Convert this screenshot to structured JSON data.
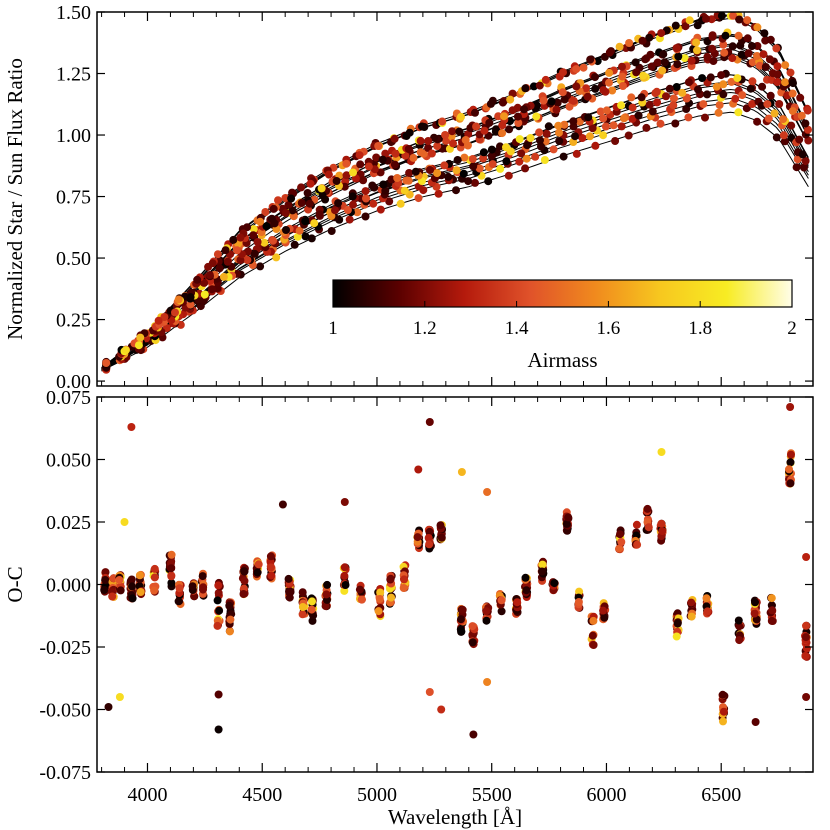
{
  "chart_data": {
    "type": "scatter",
    "colormap": {
      "name": "hot-like",
      "label": "Airmass",
      "range": [
        1,
        2
      ],
      "ticks": [
        "1",
        "1.2",
        "1.4",
        "1.6",
        "1.8",
        "2"
      ],
      "stops": [
        "#000000",
        "#5a0000",
        "#b41a0c",
        "#e0522a",
        "#f08a1e",
        "#f7c81f",
        "#f7ec23",
        "#fffde8"
      ]
    },
    "x_axis": {
      "label": "Wavelength [Å]",
      "range": [
        3780,
        6900
      ],
      "tick_values": [
        4000,
        4500,
        5000,
        5500,
        6000,
        6500
      ],
      "tick_labels": [
        "4000",
        "4500",
        "5000",
        "5500",
        "6000",
        "6500"
      ]
    },
    "top_panel": {
      "ylabel": "Normalized Star / Sun Flux Ratio",
      "ylim": [
        -0.02,
        1.5
      ],
      "tick_values": [
        0.0,
        0.25,
        0.5,
        0.75,
        1.0,
        1.25,
        1.5
      ],
      "tick_labels": [
        "0.00",
        "0.25",
        "0.50",
        "0.75",
        "1.00",
        "1.25",
        "1.50"
      ],
      "model_curve": {
        "wavelength": [
          3800,
          4000,
          4200,
          4400,
          4600,
          4800,
          5000,
          5200,
          5400,
          5600,
          5800,
          6000,
          6200,
          6400,
          6550,
          6650,
          6750,
          6880
        ],
        "ratio": [
          0.05,
          0.18,
          0.36,
          0.55,
          0.68,
          0.79,
          0.88,
          0.95,
          1.0,
          1.07,
          1.15,
          1.22,
          1.29,
          1.35,
          1.37,
          1.33,
          1.24,
          1.0
        ]
      },
      "scale_range": [
        0.82,
        1.1
      ],
      "bias_range": [
        -0.03,
        0.03
      ],
      "note": "Many fitted curves (one per star/airmass) with colored observations; curves share the model shape scaled per star"
    },
    "bottom_panel": {
      "ylabel": "O-C",
      "ylim": [
        -0.075,
        0.075
      ],
      "tick_values": [
        -0.075,
        -0.05,
        -0.025,
        0.0,
        0.025,
        0.05,
        0.075
      ],
      "tick_labels": [
        "-0.075",
        "-0.050",
        "-0.025",
        "0.000",
        "0.025",
        "0.050",
        "0.075"
      ],
      "residual_clusters": [
        {
          "wavelength": 3815,
          "center": 0.001,
          "spread": 0.004
        },
        {
          "wavelength": 3850,
          "center": -0.001,
          "spread": 0.004
        },
        {
          "wavelength": 3880,
          "center": 0.0,
          "spread": 0.004
        },
        {
          "wavelength": 3930,
          "center": -0.002,
          "spread": 0.004
        },
        {
          "wavelength": 3970,
          "center": 0.0,
          "spread": 0.004
        },
        {
          "wavelength": 4030,
          "center": 0.002,
          "spread": 0.005
        },
        {
          "wavelength": 4100,
          "center": 0.005,
          "spread": 0.007
        },
        {
          "wavelength": 4140,
          "center": -0.004,
          "spread": 0.004
        },
        {
          "wavelength": 4200,
          "center": -0.002,
          "spread": 0.003
        },
        {
          "wavelength": 4240,
          "center": 0.0,
          "spread": 0.005
        },
        {
          "wavelength": 4310,
          "center": -0.008,
          "spread": 0.009
        },
        {
          "wavelength": 4360,
          "center": -0.013,
          "spread": 0.006
        },
        {
          "wavelength": 4420,
          "center": 0.002,
          "spread": 0.006
        },
        {
          "wavelength": 4480,
          "center": 0.008,
          "spread": 0.005
        },
        {
          "wavelength": 4540,
          "center": 0.007,
          "spread": 0.005
        },
        {
          "wavelength": 4620,
          "center": -0.001,
          "spread": 0.005
        },
        {
          "wavelength": 4680,
          "center": -0.008,
          "spread": 0.005
        },
        {
          "wavelength": 4720,
          "center": -0.01,
          "spread": 0.005
        },
        {
          "wavelength": 4780,
          "center": -0.005,
          "spread": 0.005
        },
        {
          "wavelength": 4860,
          "center": 0.002,
          "spread": 0.005
        },
        {
          "wavelength": 4930,
          "center": -0.003,
          "spread": 0.004
        },
        {
          "wavelength": 5010,
          "center": -0.007,
          "spread": 0.006
        },
        {
          "wavelength": 5060,
          "center": -0.002,
          "spread": 0.006
        },
        {
          "wavelength": 5120,
          "center": 0.003,
          "spread": 0.006
        },
        {
          "wavelength": 5180,
          "center": 0.018,
          "spread": 0.004
        },
        {
          "wavelength": 5230,
          "center": 0.018,
          "spread": 0.004
        },
        {
          "wavelength": 5280,
          "center": 0.021,
          "spread": 0.003
        },
        {
          "wavelength": 5370,
          "center": -0.014,
          "spread": 0.005
        },
        {
          "wavelength": 5420,
          "center": -0.02,
          "spread": 0.004
        },
        {
          "wavelength": 5480,
          "center": -0.011,
          "spread": 0.004
        },
        {
          "wavelength": 5540,
          "center": -0.007,
          "spread": 0.004
        },
        {
          "wavelength": 5610,
          "center": -0.008,
          "spread": 0.004
        },
        {
          "wavelength": 5650,
          "center": -0.001,
          "spread": 0.004
        },
        {
          "wavelength": 5720,
          "center": 0.005,
          "spread": 0.005
        },
        {
          "wavelength": 5770,
          "center": -0.001,
          "spread": 0.004
        },
        {
          "wavelength": 5830,
          "center": 0.025,
          "spread": 0.004
        },
        {
          "wavelength": 5880,
          "center": -0.007,
          "spread": 0.005
        },
        {
          "wavelength": 5940,
          "center": -0.018,
          "spread": 0.007
        },
        {
          "wavelength": 5990,
          "center": -0.01,
          "spread": 0.004
        },
        {
          "wavelength": 6060,
          "center": 0.018,
          "spread": 0.004
        },
        {
          "wavelength": 6130,
          "center": 0.019,
          "spread": 0.005
        },
        {
          "wavelength": 6180,
          "center": 0.026,
          "spread": 0.005
        },
        {
          "wavelength": 6240,
          "center": 0.021,
          "spread": 0.004
        },
        {
          "wavelength": 6310,
          "center": -0.016,
          "spread": 0.005
        },
        {
          "wavelength": 6370,
          "center": -0.01,
          "spread": 0.004
        },
        {
          "wavelength": 6440,
          "center": -0.008,
          "spread": 0.004
        },
        {
          "wavelength": 6510,
          "center": -0.05,
          "spread": 0.006
        },
        {
          "wavelength": 6580,
          "center": -0.018,
          "spread": 0.005
        },
        {
          "wavelength": 6650,
          "center": -0.011,
          "spread": 0.005
        },
        {
          "wavelength": 6720,
          "center": -0.01,
          "spread": 0.005
        },
        {
          "wavelength": 6800,
          "center": 0.047,
          "spread": 0.007
        },
        {
          "wavelength": 6870,
          "center": -0.022,
          "spread": 0.007
        }
      ],
      "outliers": [
        {
          "wavelength": 3930,
          "value": 0.063
        },
        {
          "wavelength": 3830,
          "value": -0.049
        },
        {
          "wavelength": 3880,
          "value": -0.045
        },
        {
          "wavelength": 3900,
          "value": 0.025
        },
        {
          "wavelength": 4310,
          "value": -0.058
        },
        {
          "wavelength": 4310,
          "value": -0.044
        },
        {
          "wavelength": 4590,
          "value": 0.032
        },
        {
          "wavelength": 4860,
          "value": 0.033
        },
        {
          "wavelength": 5180,
          "value": 0.046
        },
        {
          "wavelength": 5230,
          "value": 0.065
        },
        {
          "wavelength": 5230,
          "value": -0.043
        },
        {
          "wavelength": 5280,
          "value": -0.05
        },
        {
          "wavelength": 5370,
          "value": 0.045
        },
        {
          "wavelength": 5420,
          "value": -0.06
        },
        {
          "wavelength": 5480,
          "value": 0.037
        },
        {
          "wavelength": 5480,
          "value": -0.039
        },
        {
          "wavelength": 6240,
          "value": 0.053
        },
        {
          "wavelength": 6650,
          "value": -0.055
        },
        {
          "wavelength": 6800,
          "value": 0.071
        },
        {
          "wavelength": 6870,
          "value": -0.045
        },
        {
          "wavelength": 6870,
          "value": 0.011
        }
      ]
    }
  }
}
